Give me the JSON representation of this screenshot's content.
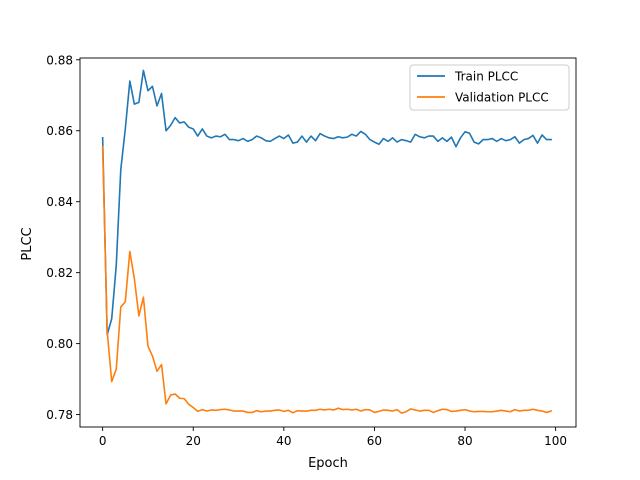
{
  "chart_data": {
    "type": "line",
    "title": "",
    "xlabel": "Epoch",
    "ylabel": "PLCC",
    "xlim": [
      -5,
      104.5
    ],
    "ylim": [
      0.7765,
      0.8805
    ],
    "xticks": [
      0,
      20,
      40,
      60,
      80,
      100
    ],
    "yticks": [
      0.78,
      0.8,
      0.82,
      0.84,
      0.86,
      0.88
    ],
    "xtick_labels": [
      "0",
      "20",
      "40",
      "60",
      "80",
      "100"
    ],
    "ytick_labels": [
      "0.78",
      "0.80",
      "0.82",
      "0.84",
      "0.86",
      "0.88"
    ],
    "grid": false,
    "legend_position": "top-right",
    "series": [
      {
        "name": "Train PLCC",
        "color": "#1f77b4",
        "x": [
          0,
          1,
          2,
          3,
          4,
          5,
          6,
          7,
          8,
          9,
          10,
          11,
          12,
          13,
          14,
          15,
          16,
          17,
          18,
          19,
          20,
          21,
          22,
          23,
          24,
          25,
          26,
          27,
          28,
          29,
          30,
          31,
          32,
          33,
          34,
          35,
          36,
          37,
          38,
          39,
          40,
          41,
          42,
          43,
          44,
          45,
          46,
          47,
          48,
          49,
          50,
          51,
          52,
          53,
          54,
          55,
          56,
          57,
          58,
          59,
          60,
          61,
          62,
          63,
          64,
          65,
          66,
          67,
          68,
          69,
          70,
          71,
          72,
          73,
          74,
          75,
          76,
          77,
          78,
          79,
          80,
          81,
          82,
          83,
          84,
          85,
          86,
          87,
          88,
          89,
          90,
          91,
          92,
          93,
          94,
          95,
          96,
          97,
          98,
          99
        ],
        "values": [
          0.858,
          0.8025,
          0.807,
          0.822,
          0.849,
          0.8605,
          0.874,
          0.8675,
          0.868,
          0.877,
          0.8713,
          0.8725,
          0.867,
          0.8705,
          0.86,
          0.8615,
          0.8637,
          0.8622,
          0.8625,
          0.861,
          0.8605,
          0.8585,
          0.8605,
          0.8585,
          0.858,
          0.8585,
          0.8583,
          0.859,
          0.8575,
          0.8575,
          0.8572,
          0.8578,
          0.857,
          0.8575,
          0.8585,
          0.858,
          0.8572,
          0.857,
          0.8578,
          0.8585,
          0.8578,
          0.8588,
          0.8565,
          0.8568,
          0.8585,
          0.8568,
          0.8585,
          0.8572,
          0.8592,
          0.8585,
          0.858,
          0.8578,
          0.8583,
          0.858,
          0.8582,
          0.859,
          0.8585,
          0.8598,
          0.859,
          0.8575,
          0.8568,
          0.8562,
          0.8578,
          0.857,
          0.858,
          0.8568,
          0.8575,
          0.8572,
          0.8568,
          0.859,
          0.8583,
          0.858,
          0.8585,
          0.8585,
          0.857,
          0.858,
          0.857,
          0.8582,
          0.8555,
          0.858,
          0.8597,
          0.8593,
          0.8568,
          0.8563,
          0.8575,
          0.8575,
          0.8578,
          0.857,
          0.8578,
          0.8572,
          0.8575,
          0.8583,
          0.8565,
          0.8575,
          0.8578,
          0.8587,
          0.8565,
          0.8588,
          0.8575,
          0.8575
        ]
      },
      {
        "name": "Validation PLCC",
        "color": "#ff7f0e",
        "x": [
          0,
          1,
          2,
          3,
          4,
          5,
          6,
          7,
          8,
          9,
          10,
          11,
          12,
          13,
          14,
          15,
          16,
          17,
          18,
          19,
          20,
          21,
          22,
          23,
          24,
          25,
          26,
          27,
          28,
          29,
          30,
          31,
          32,
          33,
          34,
          35,
          36,
          37,
          38,
          39,
          40,
          41,
          42,
          43,
          44,
          45,
          46,
          47,
          48,
          49,
          50,
          51,
          52,
          53,
          54,
          55,
          56,
          57,
          58,
          59,
          60,
          61,
          62,
          63,
          64,
          65,
          66,
          67,
          68,
          69,
          70,
          71,
          72,
          73,
          74,
          75,
          76,
          77,
          78,
          79,
          80,
          81,
          82,
          83,
          84,
          85,
          86,
          87,
          88,
          89,
          90,
          91,
          92,
          93,
          94,
          95,
          96,
          97,
          98,
          99
        ],
        "values": [
          0.8555,
          0.8035,
          0.7893,
          0.7928,
          0.8103,
          0.8118,
          0.826,
          0.8183,
          0.8078,
          0.8131,
          0.7993,
          0.7965,
          0.7922,
          0.7941,
          0.783,
          0.7855,
          0.7858,
          0.7846,
          0.7845,
          0.7829,
          0.782,
          0.7809,
          0.7814,
          0.781,
          0.7813,
          0.7812,
          0.7814,
          0.7815,
          0.7813,
          0.781,
          0.781,
          0.781,
          0.7806,
          0.7806,
          0.7811,
          0.7808,
          0.781,
          0.781,
          0.7812,
          0.7813,
          0.7809,
          0.7812,
          0.7805,
          0.7811,
          0.781,
          0.781,
          0.7812,
          0.7812,
          0.7815,
          0.7813,
          0.7815,
          0.7813,
          0.7818,
          0.7814,
          0.7815,
          0.7813,
          0.7815,
          0.781,
          0.7814,
          0.7813,
          0.7806,
          0.7809,
          0.7813,
          0.7812,
          0.781,
          0.7814,
          0.7804,
          0.7808,
          0.7816,
          0.7813,
          0.781,
          0.7812,
          0.7812,
          0.7806,
          0.7811,
          0.7815,
          0.7814,
          0.7809,
          0.781,
          0.7812,
          0.7814,
          0.781,
          0.7808,
          0.7809,
          0.7809,
          0.7808,
          0.7808,
          0.781,
          0.7812,
          0.781,
          0.7808,
          0.7814,
          0.781,
          0.7812,
          0.7812,
          0.7815,
          0.7812,
          0.781,
          0.7806,
          0.781
        ]
      }
    ]
  }
}
